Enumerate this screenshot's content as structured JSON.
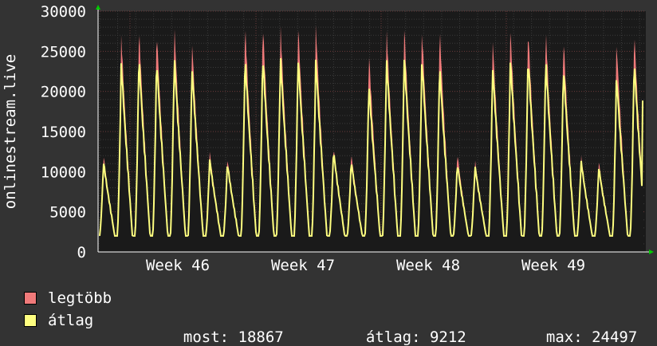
{
  "colors": {
    "background": "#333333",
    "plot_background": "#1a1a1a",
    "grid": "#4a4a4a",
    "max_series": "#f07a7a",
    "avg_series": "#ffff80",
    "axis": "#ffffff"
  },
  "legend": {
    "max_label": "legtöbb",
    "avg_label": "átlag",
    "now_label": "most:",
    "now_value": "18867",
    "avg_stat_label": "átlag:",
    "avg_stat_value": "9212",
    "max_stat_label": "max:",
    "max_stat_value": "24497"
  },
  "chart_data": {
    "type": "area",
    "ylabel": "onlinestream.live",
    "xlabel": "",
    "title": "",
    "ylim": [
      0,
      30000
    ],
    "y_ticks": [
      0,
      5000,
      10000,
      15000,
      20000,
      25000,
      30000
    ],
    "x_ticks": [
      "Week 46",
      "Week 47",
      "Week 48",
      "Week 49"
    ],
    "grid": true,
    "legend_position": "bottom-left",
    "series": [
      {
        "name": "legtöbb",
        "daily_peaks": [
          12000,
          27000,
          28000,
          27800,
          28200,
          26300,
          12500,
          11700,
          28500,
          28700,
          28200,
          28300,
          28300,
          13100,
          12400,
          25000,
          27700,
          28000,
          27800,
          28000,
          12400,
          11500,
          26500,
          27800,
          28000,
          27800,
          26800,
          12000,
          11300,
          26300,
          27600
        ]
      },
      {
        "name": "átlag",
        "daily_peaks": [
          11200,
          23500,
          24300,
          24000,
          24300,
          23000,
          11500,
          11000,
          24200,
          24500,
          24200,
          24200,
          24000,
          12600,
          11300,
          21000,
          24000,
          24300,
          24000,
          23200,
          11000,
          10700,
          23000,
          24000,
          24300,
          24000,
          23000,
          11300,
          10500,
          22000,
          23800
        ]
      }
    ],
    "daily_min": 2000,
    "last_value": 18867
  }
}
